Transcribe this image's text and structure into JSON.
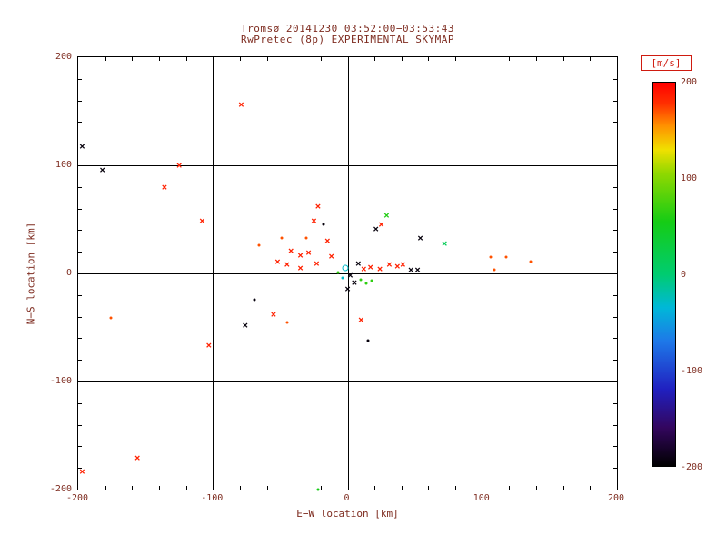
{
  "chart_data": {
    "type": "scatter",
    "title": "Tromsø 20141230 03:52:00−03:53:43",
    "subtitle": "RwPretec (8p) EXPERIMENTAL SKYMAP",
    "xlabel": "E−W location [km]",
    "ylabel": "N−S location [km]",
    "xlim": [
      -200,
      200
    ],
    "ylim": [
      -200,
      200
    ],
    "x_ticks": [
      -200,
      -100,
      0,
      100,
      200
    ],
    "y_ticks": [
      -200,
      -100,
      0,
      100,
      200
    ],
    "gridlines_x": [
      -100,
      0,
      100
    ],
    "gridlines_y": [
      -100,
      0,
      100
    ],
    "minor_tick_step": 20,
    "grid": true,
    "legend_position": "none",
    "colorbar": {
      "label": "[m/s]",
      "min": -200,
      "max": 200,
      "ticks": [
        200,
        100,
        0,
        -100,
        -200
      ],
      "stops": [
        {
          "v": -200,
          "color": "#000000"
        },
        {
          "v": -160,
          "color": "#33065e"
        },
        {
          "v": -120,
          "color": "#2020c0"
        },
        {
          "v": -70,
          "color": "#1e78e8"
        },
        {
          "v": -35,
          "color": "#00b8d8"
        },
        {
          "v": 0,
          "color": "#00cc70"
        },
        {
          "v": 55,
          "color": "#15cc15"
        },
        {
          "v": 105,
          "color": "#90d800"
        },
        {
          "v": 130,
          "color": "#f0e000"
        },
        {
          "v": 155,
          "color": "#ff9000"
        },
        {
          "v": 178,
          "color": "#ff3000"
        },
        {
          "v": 200,
          "color": "#ff0000"
        }
      ]
    },
    "points": [
      {
        "x": -197,
        "y": 118,
        "v": -195,
        "m": "x"
      },
      {
        "x": -182,
        "y": 96,
        "v": -195,
        "m": "x"
      },
      {
        "x": -125,
        "y": 100,
        "v": 185,
        "m": "x"
      },
      {
        "x": -136,
        "y": 80,
        "v": 185,
        "m": "x"
      },
      {
        "x": -108,
        "y": 49,
        "v": 185,
        "m": "x"
      },
      {
        "x": -79,
        "y": 156,
        "v": 185,
        "m": "x"
      },
      {
        "x": -176,
        "y": -41,
        "v": 170,
        "m": "dot"
      },
      {
        "x": -156,
        "y": -171,
        "v": 185,
        "m": "x"
      },
      {
        "x": -197,
        "y": -183,
        "v": 185,
        "m": "x"
      },
      {
        "x": -103,
        "y": -66,
        "v": 185,
        "m": "x"
      },
      {
        "x": -76,
        "y": -48,
        "v": -195,
        "m": "x"
      },
      {
        "x": -55,
        "y": -38,
        "v": 185,
        "m": "x"
      },
      {
        "x": -45,
        "y": -45,
        "v": 170,
        "m": "dot"
      },
      {
        "x": -69,
        "y": -24,
        "v": -195,
        "m": "dot"
      },
      {
        "x": -66,
        "y": 26,
        "v": 170,
        "m": "dot"
      },
      {
        "x": -52,
        "y": 11,
        "v": 185,
        "m": "x"
      },
      {
        "x": -45,
        "y": 8,
        "v": 185,
        "m": "x"
      },
      {
        "x": -42,
        "y": 21,
        "v": 185,
        "m": "x"
      },
      {
        "x": -35,
        "y": 17,
        "v": 185,
        "m": "x"
      },
      {
        "x": -29,
        "y": 19,
        "v": 185,
        "m": "x"
      },
      {
        "x": -22,
        "y": 62,
        "v": 185,
        "m": "x"
      },
      {
        "x": -25,
        "y": 49,
        "v": 185,
        "m": "x"
      },
      {
        "x": -18,
        "y": 45,
        "v": -195,
        "m": "dot"
      },
      {
        "x": -15,
        "y": 30,
        "v": 185,
        "m": "x"
      },
      {
        "x": -12,
        "y": 16,
        "v": 185,
        "m": "x"
      },
      {
        "x": -31,
        "y": 33,
        "v": 170,
        "m": "dot"
      },
      {
        "x": -49,
        "y": 33,
        "v": 170,
        "m": "dot"
      },
      {
        "x": -23,
        "y": 9,
        "v": 185,
        "m": "x"
      },
      {
        "x": -35,
        "y": 5,
        "v": 185,
        "m": "x"
      },
      {
        "x": 8,
        "y": 9,
        "v": -195,
        "m": "x"
      },
      {
        "x": 12,
        "y": 4,
        "v": 185,
        "m": "x"
      },
      {
        "x": 17,
        "y": 6,
        "v": 185,
        "m": "x"
      },
      {
        "x": 24,
        "y": 4,
        "v": 185,
        "m": "x"
      },
      {
        "x": 31,
        "y": 8,
        "v": 185,
        "m": "x"
      },
      {
        "x": 37,
        "y": 7,
        "v": 185,
        "m": "x"
      },
      {
        "x": 41,
        "y": 8,
        "v": 185,
        "m": "x"
      },
      {
        "x": 47,
        "y": 3,
        "v": -195,
        "m": "x"
      },
      {
        "x": 52,
        "y": 3,
        "v": -195,
        "m": "x"
      },
      {
        "x": 29,
        "y": 54,
        "v": 60,
        "m": "x"
      },
      {
        "x": 25,
        "y": 45,
        "v": 185,
        "m": "x"
      },
      {
        "x": 21,
        "y": 41,
        "v": -195,
        "m": "x"
      },
      {
        "x": 54,
        "y": 33,
        "v": -195,
        "m": "x"
      },
      {
        "x": 72,
        "y": 28,
        "v": 15,
        "m": "x"
      },
      {
        "x": 106,
        "y": 15,
        "v": 170,
        "m": "dot"
      },
      {
        "x": 118,
        "y": 15,
        "v": 170,
        "m": "dot"
      },
      {
        "x": 136,
        "y": 11,
        "v": 170,
        "m": "dot"
      },
      {
        "x": 109,
        "y": 3,
        "v": 170,
        "m": "dot"
      },
      {
        "x": -2,
        "y": 5,
        "v": -30,
        "m": "circle"
      },
      {
        "x": 2,
        "y": -2,
        "v": -195,
        "m": "x"
      },
      {
        "x": 5,
        "y": -8,
        "v": -195,
        "m": "x"
      },
      {
        "x": 0,
        "y": -14,
        "v": -195,
        "m": "x"
      },
      {
        "x": 10,
        "y": -6,
        "v": 65,
        "m": "dot"
      },
      {
        "x": 14,
        "y": -9,
        "v": 65,
        "m": "dot"
      },
      {
        "x": 18,
        "y": -7,
        "v": 65,
        "m": "dot"
      },
      {
        "x": 10,
        "y": -43,
        "v": 185,
        "m": "x"
      },
      {
        "x": 15,
        "y": -62,
        "v": -195,
        "m": "dot"
      },
      {
        "x": -22,
        "y": -200,
        "v": 55,
        "m": "dot"
      },
      {
        "x": -7,
        "y": 1,
        "v": 65,
        "m": "dot"
      },
      {
        "x": -4,
        "y": -4,
        "v": -30,
        "m": "dot"
      }
    ]
  },
  "colors": {
    "background": "#ffffff",
    "text": "#7e2c20",
    "axis": "#000000",
    "colorbar_label": "#cf1b10"
  }
}
